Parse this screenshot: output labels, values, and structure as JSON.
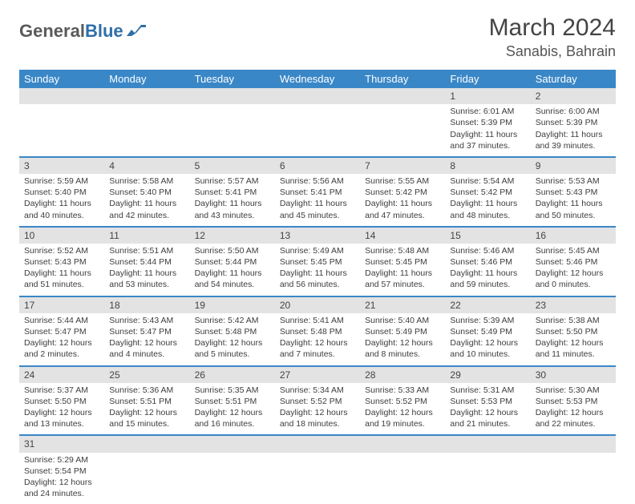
{
  "brand": {
    "part1": "General",
    "part2": "Blue"
  },
  "title": "March 2024",
  "location": "Sanabis, Bahrain",
  "colors": {
    "header_bg": "#3a87c7",
    "header_text": "#ffffff",
    "daynum_bg": "#e3e3e3",
    "row_border": "#3a87c7",
    "logo_text1": "#5a5a5a",
    "logo_text2": "#2f6fa8"
  },
  "weekdays": [
    "Sunday",
    "Monday",
    "Tuesday",
    "Wednesday",
    "Thursday",
    "Friday",
    "Saturday"
  ],
  "weeks": [
    [
      null,
      null,
      null,
      null,
      null,
      {
        "n": "1",
        "sr": "Sunrise: 6:01 AM",
        "ss": "Sunset: 5:39 PM",
        "dl1": "Daylight: 11 hours",
        "dl2": "and 37 minutes."
      },
      {
        "n": "2",
        "sr": "Sunrise: 6:00 AM",
        "ss": "Sunset: 5:39 PM",
        "dl1": "Daylight: 11 hours",
        "dl2": "and 39 minutes."
      }
    ],
    [
      {
        "n": "3",
        "sr": "Sunrise: 5:59 AM",
        "ss": "Sunset: 5:40 PM",
        "dl1": "Daylight: 11 hours",
        "dl2": "and 40 minutes."
      },
      {
        "n": "4",
        "sr": "Sunrise: 5:58 AM",
        "ss": "Sunset: 5:40 PM",
        "dl1": "Daylight: 11 hours",
        "dl2": "and 42 minutes."
      },
      {
        "n": "5",
        "sr": "Sunrise: 5:57 AM",
        "ss": "Sunset: 5:41 PM",
        "dl1": "Daylight: 11 hours",
        "dl2": "and 43 minutes."
      },
      {
        "n": "6",
        "sr": "Sunrise: 5:56 AM",
        "ss": "Sunset: 5:41 PM",
        "dl1": "Daylight: 11 hours",
        "dl2": "and 45 minutes."
      },
      {
        "n": "7",
        "sr": "Sunrise: 5:55 AM",
        "ss": "Sunset: 5:42 PM",
        "dl1": "Daylight: 11 hours",
        "dl2": "and 47 minutes."
      },
      {
        "n": "8",
        "sr": "Sunrise: 5:54 AM",
        "ss": "Sunset: 5:42 PM",
        "dl1": "Daylight: 11 hours",
        "dl2": "and 48 minutes."
      },
      {
        "n": "9",
        "sr": "Sunrise: 5:53 AM",
        "ss": "Sunset: 5:43 PM",
        "dl1": "Daylight: 11 hours",
        "dl2": "and 50 minutes."
      }
    ],
    [
      {
        "n": "10",
        "sr": "Sunrise: 5:52 AM",
        "ss": "Sunset: 5:43 PM",
        "dl1": "Daylight: 11 hours",
        "dl2": "and 51 minutes."
      },
      {
        "n": "11",
        "sr": "Sunrise: 5:51 AM",
        "ss": "Sunset: 5:44 PM",
        "dl1": "Daylight: 11 hours",
        "dl2": "and 53 minutes."
      },
      {
        "n": "12",
        "sr": "Sunrise: 5:50 AM",
        "ss": "Sunset: 5:44 PM",
        "dl1": "Daylight: 11 hours",
        "dl2": "and 54 minutes."
      },
      {
        "n": "13",
        "sr": "Sunrise: 5:49 AM",
        "ss": "Sunset: 5:45 PM",
        "dl1": "Daylight: 11 hours",
        "dl2": "and 56 minutes."
      },
      {
        "n": "14",
        "sr": "Sunrise: 5:48 AM",
        "ss": "Sunset: 5:45 PM",
        "dl1": "Daylight: 11 hours",
        "dl2": "and 57 minutes."
      },
      {
        "n": "15",
        "sr": "Sunrise: 5:46 AM",
        "ss": "Sunset: 5:46 PM",
        "dl1": "Daylight: 11 hours",
        "dl2": "and 59 minutes."
      },
      {
        "n": "16",
        "sr": "Sunrise: 5:45 AM",
        "ss": "Sunset: 5:46 PM",
        "dl1": "Daylight: 12 hours",
        "dl2": "and 0 minutes."
      }
    ],
    [
      {
        "n": "17",
        "sr": "Sunrise: 5:44 AM",
        "ss": "Sunset: 5:47 PM",
        "dl1": "Daylight: 12 hours",
        "dl2": "and 2 minutes."
      },
      {
        "n": "18",
        "sr": "Sunrise: 5:43 AM",
        "ss": "Sunset: 5:47 PM",
        "dl1": "Daylight: 12 hours",
        "dl2": "and 4 minutes."
      },
      {
        "n": "19",
        "sr": "Sunrise: 5:42 AM",
        "ss": "Sunset: 5:48 PM",
        "dl1": "Daylight: 12 hours",
        "dl2": "and 5 minutes."
      },
      {
        "n": "20",
        "sr": "Sunrise: 5:41 AM",
        "ss": "Sunset: 5:48 PM",
        "dl1": "Daylight: 12 hours",
        "dl2": "and 7 minutes."
      },
      {
        "n": "21",
        "sr": "Sunrise: 5:40 AM",
        "ss": "Sunset: 5:49 PM",
        "dl1": "Daylight: 12 hours",
        "dl2": "and 8 minutes."
      },
      {
        "n": "22",
        "sr": "Sunrise: 5:39 AM",
        "ss": "Sunset: 5:49 PM",
        "dl1": "Daylight: 12 hours",
        "dl2": "and 10 minutes."
      },
      {
        "n": "23",
        "sr": "Sunrise: 5:38 AM",
        "ss": "Sunset: 5:50 PM",
        "dl1": "Daylight: 12 hours",
        "dl2": "and 11 minutes."
      }
    ],
    [
      {
        "n": "24",
        "sr": "Sunrise: 5:37 AM",
        "ss": "Sunset: 5:50 PM",
        "dl1": "Daylight: 12 hours",
        "dl2": "and 13 minutes."
      },
      {
        "n": "25",
        "sr": "Sunrise: 5:36 AM",
        "ss": "Sunset: 5:51 PM",
        "dl1": "Daylight: 12 hours",
        "dl2": "and 15 minutes."
      },
      {
        "n": "26",
        "sr": "Sunrise: 5:35 AM",
        "ss": "Sunset: 5:51 PM",
        "dl1": "Daylight: 12 hours",
        "dl2": "and 16 minutes."
      },
      {
        "n": "27",
        "sr": "Sunrise: 5:34 AM",
        "ss": "Sunset: 5:52 PM",
        "dl1": "Daylight: 12 hours",
        "dl2": "and 18 minutes."
      },
      {
        "n": "28",
        "sr": "Sunrise: 5:33 AM",
        "ss": "Sunset: 5:52 PM",
        "dl1": "Daylight: 12 hours",
        "dl2": "and 19 minutes."
      },
      {
        "n": "29",
        "sr": "Sunrise: 5:31 AM",
        "ss": "Sunset: 5:53 PM",
        "dl1": "Daylight: 12 hours",
        "dl2": "and 21 minutes."
      },
      {
        "n": "30",
        "sr": "Sunrise: 5:30 AM",
        "ss": "Sunset: 5:53 PM",
        "dl1": "Daylight: 12 hours",
        "dl2": "and 22 minutes."
      }
    ],
    [
      {
        "n": "31",
        "sr": "Sunrise: 5:29 AM",
        "ss": "Sunset: 5:54 PM",
        "dl1": "Daylight: 12 hours",
        "dl2": "and 24 minutes."
      },
      null,
      null,
      null,
      null,
      null,
      null
    ]
  ]
}
